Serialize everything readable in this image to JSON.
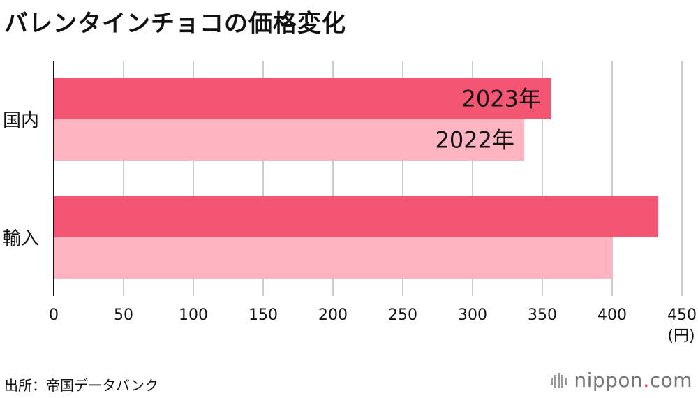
{
  "title": "バレンタインチョコの価格変化",
  "source": "出所：帝国データバンク",
  "logo": {
    "name": "nippon",
    "dot": ".",
    "tld": "com"
  },
  "colors": {
    "series_2023": "#f45573",
    "series_2022": "#feb4c1",
    "grid": "#cccccc",
    "axis": "#111111"
  },
  "chart_data": {
    "type": "bar",
    "orientation": "horizontal",
    "title": "バレンタインチョコの価格変化",
    "categories": [
      "国内",
      "輸入"
    ],
    "series": [
      {
        "name": "2023年",
        "values": [
          356,
          433
        ]
      },
      {
        "name": "2022年",
        "values": [
          337,
          400
        ]
      }
    ],
    "xlim": [
      0,
      450
    ],
    "ticks": [
      "0",
      "50",
      "100",
      "150",
      "200",
      "250",
      "300",
      "350",
      "400",
      "450"
    ],
    "unit": "(円)",
    "grid": true,
    "legend": "inline labels on first category bars"
  }
}
